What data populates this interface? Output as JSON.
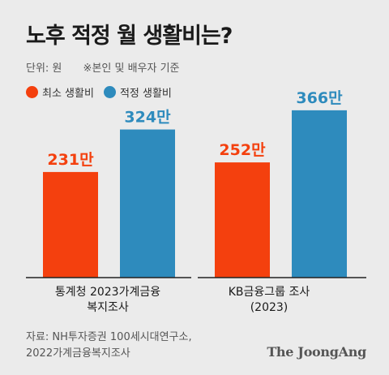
{
  "title": "노후 적정 월 생활비는?",
  "unit_label": "단위: 원",
  "note": "※본인 및 배우자 기준",
  "colors": {
    "min": "#f4400e",
    "adequate": "#2e8bbd",
    "axis": "#222222"
  },
  "chart_data": {
    "type": "bar",
    "categories": [
      [
        "통계청 2023가계금융",
        "복지조사"
      ],
      [
        "KB금융그룹 조사",
        "(2023)"
      ]
    ],
    "series": [
      {
        "name": "최소 생활비",
        "values": [
          231,
          252
        ],
        "labels": [
          "231만",
          "252만"
        ]
      },
      {
        "name": "적정 생활비",
        "values": [
          324,
          366
        ],
        "labels": [
          "324만",
          "366만"
        ]
      }
    ],
    "ylim": [
      0,
      380
    ],
    "grid": false,
    "legend": "top-left"
  },
  "source": [
    "자료: NH투자증권 100세시대연구소,",
    "2022가계금융복지조사"
  ],
  "logo": "The JoongAng"
}
